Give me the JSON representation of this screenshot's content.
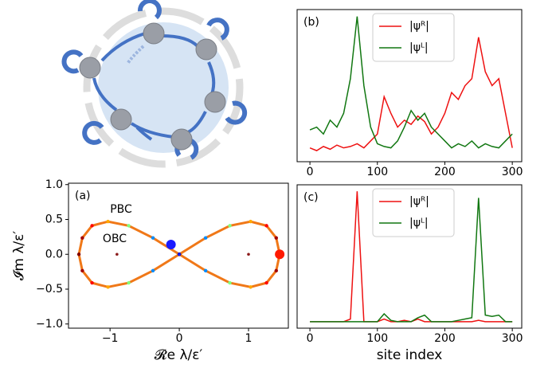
{
  "chart_data": [
    {
      "type": "scatter",
      "label": "(a)",
      "xlabel": "𝓡e λ/ε′",
      "ylabel": "𝓘m λ/ε′",
      "annotations": [
        "PBC",
        "OBC"
      ],
      "xlim": [
        -1.6,
        1.575
      ],
      "ylim": [
        -1.06,
        1.02
      ],
      "xticks": [
        {
          "value": -1,
          "label": "−1"
        },
        0,
        1
      ],
      "yticks": [
        {
          "value": -1,
          "label": "−1.0"
        },
        {
          "value": -0.5,
          "label": "−0.5"
        },
        {
          "value": 0,
          "label": "0.0"
        },
        0.5,
        {
          "value": 1,
          "label": "1.0"
        }
      ],
      "pbc": {
        "colormap": "jet",
        "x": [
          1.45,
          1.4,
          1.26,
          1.03,
          0.73,
          0.38,
          0,
          -0.38,
          -0.73,
          -1.03,
          -1.26,
          -1.4,
          -1.45,
          -1.4,
          -1.26,
          -1.03,
          -0.73,
          -0.38,
          0,
          0.38,
          0.73,
          1.03,
          1.26,
          1.4,
          1.45
        ],
        "y": [
          0,
          0.235,
          0.41,
          0.47,
          0.41,
          0.235,
          0,
          -0.235,
          -0.41,
          -0.47,
          -0.41,
          -0.235,
          0,
          0.235,
          0.41,
          0.47,
          0.41,
          0.235,
          0,
          -0.235,
          -0.41,
          -0.47,
          -0.41,
          -0.235,
          0
        ]
      },
      "markers": {
        "x": [
          1.45,
          -0.12,
          -0.9,
          1.0,
          0
        ],
        "y": [
          0,
          0.14,
          0,
          0,
          0
        ],
        "colors": [
          "#ff1a00",
          "#1a1aff",
          "#8b1a1a",
          "#8b1a1a",
          "#1a1aff"
        ]
      }
    },
    {
      "type": "line",
      "label": "(b)",
      "legend": "upper center",
      "xlim": [
        -19,
        314
      ],
      "ylim": [
        -0.05,
        1.05
      ],
      "xticks": [
        0,
        100,
        200,
        300
      ],
      "x": [
        0,
        10,
        20,
        30,
        40,
        50,
        60,
        70,
        80,
        90,
        100,
        110,
        120,
        130,
        140,
        150,
        160,
        170,
        180,
        190,
        200,
        210,
        220,
        230,
        240,
        250,
        260,
        270,
        280,
        290,
        300
      ],
      "series": [
        {
          "name": "|ψᴿ|",
          "color": "#ee1111",
          "values": [
            0.05,
            0.03,
            0.06,
            0.04,
            0.07,
            0.05,
            0.06,
            0.08,
            0.05,
            0.1,
            0.15,
            0.42,
            0.3,
            0.2,
            0.25,
            0.22,
            0.28,
            0.24,
            0.15,
            0.2,
            0.3,
            0.45,
            0.4,
            0.5,
            0.55,
            0.85,
            0.6,
            0.5,
            0.55,
            0.3,
            0.05
          ]
        },
        {
          "name": "|ψᴸ|",
          "color": "#117711",
          "values": [
            0.18,
            0.2,
            0.15,
            0.25,
            0.2,
            0.3,
            0.55,
            1.0,
            0.5,
            0.2,
            0.08,
            0.06,
            0.05,
            0.1,
            0.2,
            0.32,
            0.25,
            0.3,
            0.2,
            0.15,
            0.1,
            0.05,
            0.08,
            0.06,
            0.1,
            0.05,
            0.08,
            0.06,
            0.05,
            0.1,
            0.15
          ]
        }
      ]
    },
    {
      "type": "line",
      "label": "(c)",
      "legend": "upper center",
      "xlabel": "site index",
      "xlim": [
        -19,
        314
      ],
      "ylim": [
        -0.05,
        1.05
      ],
      "xticks": [
        0,
        100,
        200,
        300
      ],
      "x": [
        0,
        10,
        20,
        30,
        40,
        50,
        60,
        70,
        80,
        90,
        100,
        110,
        120,
        130,
        140,
        150,
        160,
        170,
        180,
        190,
        200,
        210,
        220,
        230,
        240,
        250,
        260,
        270,
        280,
        290,
        300
      ],
      "series": [
        {
          "name": "|ψᴿ|",
          "color": "#ee1111",
          "values": [
            0,
            0,
            0,
            0,
            0,
            0,
            0.02,
            1.0,
            0,
            0,
            0,
            0.02,
            0,
            0,
            0.01,
            0,
            0.02,
            0,
            0,
            0,
            0,
            0,
            0,
            0,
            0,
            0.01,
            0,
            0,
            0,
            0,
            0
          ]
        },
        {
          "name": "|ψᴸ|",
          "color": "#117711",
          "values": [
            0,
            0,
            0,
            0,
            0,
            0,
            0,
            0,
            0,
            0,
            0,
            0.06,
            0.01,
            0,
            0,
            0,
            0.03,
            0.05,
            0,
            0,
            0,
            0,
            0.01,
            0.02,
            0.03,
            0.95,
            0.05,
            0.04,
            0.05,
            0,
            0
          ]
        }
      ]
    }
  ]
}
